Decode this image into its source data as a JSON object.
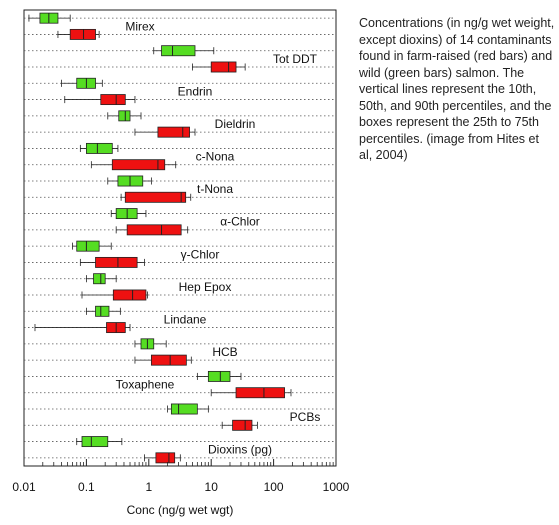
{
  "caption": "Concentrations (in ng/g wet weight, except dioxins) of 14 contaminants found in farm-raised (red bars) and wild (green bars) salmon. The vertical lines represent the 10th, 50th, and 90th percentiles, and the boxes represent the 25th to 75th percentiles. (image from Hites et al, 2004)",
  "chart_data": {
    "type": "box",
    "orientation": "horizontal",
    "xlabel": "Conc (ng/g wet wgt)",
    "xscale": "log",
    "xlim": [
      0.01,
      1000
    ],
    "xticks": [
      0.01,
      0.1,
      1,
      10,
      100,
      1000
    ],
    "xtick_labels": [
      "0.01",
      "0.1",
      "1",
      "10",
      "100",
      "1000"
    ],
    "grid": "dotted horizontal lines",
    "colors": {
      "farmed": "#ee1111",
      "wild": "#55dd22"
    },
    "contaminants": [
      {
        "name": "Mirex",
        "wild": {
          "p10": 0.012,
          "p25": 0.018,
          "p50": 0.025,
          "p75": 0.035,
          "p90": 0.055
        },
        "farmed": {
          "p10": 0.035,
          "p25": 0.055,
          "p50": 0.09,
          "p75": 0.14,
          "p90": 0.16
        }
      },
      {
        "name": "Tot DDT",
        "wild": {
          "p10": 1.2,
          "p25": 1.6,
          "p50": 2.4,
          "p75": 5.5,
          "p90": 11
        },
        "farmed": {
          "p10": 5,
          "p25": 10,
          "p50": 19,
          "p75": 25,
          "p90": 35
        }
      },
      {
        "name": "Endrin",
        "wild": {
          "p10": 0.04,
          "p25": 0.07,
          "p50": 0.1,
          "p75": 0.14,
          "p90": 0.18
        },
        "farmed": {
          "p10": 0.045,
          "p25": 0.17,
          "p50": 0.3,
          "p75": 0.42,
          "p90": 0.6
        }
      },
      {
        "name": "Dieldrin",
        "wild": {
          "p10": 0.22,
          "p25": 0.33,
          "p50": 0.42,
          "p75": 0.5,
          "p90": 0.75
        },
        "farmed": {
          "p10": 0.6,
          "p25": 1.4,
          "p50": 3.5,
          "p75": 4.5,
          "p90": 5.5
        }
      },
      {
        "name": "c-Nona",
        "wild": {
          "p10": 0.08,
          "p25": 0.1,
          "p50": 0.15,
          "p75": 0.26,
          "p90": 0.32
        },
        "farmed": {
          "p10": 0.12,
          "p25": 0.26,
          "p50": 1.4,
          "p75": 1.8,
          "p90": 2.7
        }
      },
      {
        "name": "t-Nona",
        "wild": {
          "p10": 0.22,
          "p25": 0.32,
          "p50": 0.5,
          "p75": 0.8,
          "p90": 1.1
        },
        "farmed": {
          "p10": 0.36,
          "p25": 0.42,
          "p50": 3.3,
          "p75": 3.9,
          "p90": 4.7
        }
      },
      {
        "name": "α-Chlor",
        "wild": {
          "p10": 0.25,
          "p25": 0.3,
          "p50": 0.45,
          "p75": 0.65,
          "p90": 0.9
        },
        "farmed": {
          "p10": 0.3,
          "p25": 0.45,
          "p50": 1.6,
          "p75": 3.3,
          "p90": 4.2
        }
      },
      {
        "name": "γ-Chlor",
        "wild": {
          "p10": 0.06,
          "p25": 0.07,
          "p50": 0.1,
          "p75": 0.16,
          "p90": 0.25
        },
        "farmed": {
          "p10": 0.08,
          "p25": 0.14,
          "p50": 0.32,
          "p75": 0.65,
          "p90": 0.85
        }
      },
      {
        "name": "Hep Epox",
        "wild": {
          "p10": 0.1,
          "p25": 0.13,
          "p50": 0.17,
          "p75": 0.2,
          "p90": 0.3
        },
        "farmed": {
          "p10": 0.085,
          "p25": 0.27,
          "p50": 0.55,
          "p75": 0.9,
          "p90": 0.95
        }
      },
      {
        "name": "Lindane",
        "wild": {
          "p10": 0.1,
          "p25": 0.14,
          "p50": 0.17,
          "p75": 0.23,
          "p90": 0.35
        },
        "farmed": {
          "p10": 0.015,
          "p25": 0.21,
          "p50": 0.3,
          "p75": 0.42,
          "p90": 0.5
        }
      },
      {
        "name": "HCB",
        "wild": {
          "p10": 0.6,
          "p25": 0.75,
          "p50": 0.95,
          "p75": 1.2,
          "p90": 1.9
        },
        "farmed": {
          "p10": 0.6,
          "p25": 1.1,
          "p50": 2.2,
          "p75": 4,
          "p90": 4.8
        }
      },
      {
        "name": "Toxaphene",
        "wild": {
          "p10": 6,
          "p25": 9,
          "p50": 14,
          "p75": 20,
          "p90": 30
        },
        "farmed": {
          "p10": 10,
          "p25": 25,
          "p50": 70,
          "p75": 150,
          "p90": 190
        }
      },
      {
        "name": "PCBs",
        "wild": {
          "p10": 2,
          "p25": 2.3,
          "p50": 3,
          "p75": 6,
          "p90": 9
        },
        "farmed": {
          "p10": 15,
          "p25": 22,
          "p50": 35,
          "p75": 45,
          "p90": 55
        }
      },
      {
        "name": "Dioxins (pg)",
        "wild": {
          "p10": 0.07,
          "p25": 0.085,
          "p50": 0.12,
          "p75": 0.22,
          "p90": 0.37
        },
        "farmed": {
          "p10": 0.85,
          "p25": 1.3,
          "p50": 2.1,
          "p75": 2.6,
          "p90": 3.2
        }
      }
    ]
  }
}
